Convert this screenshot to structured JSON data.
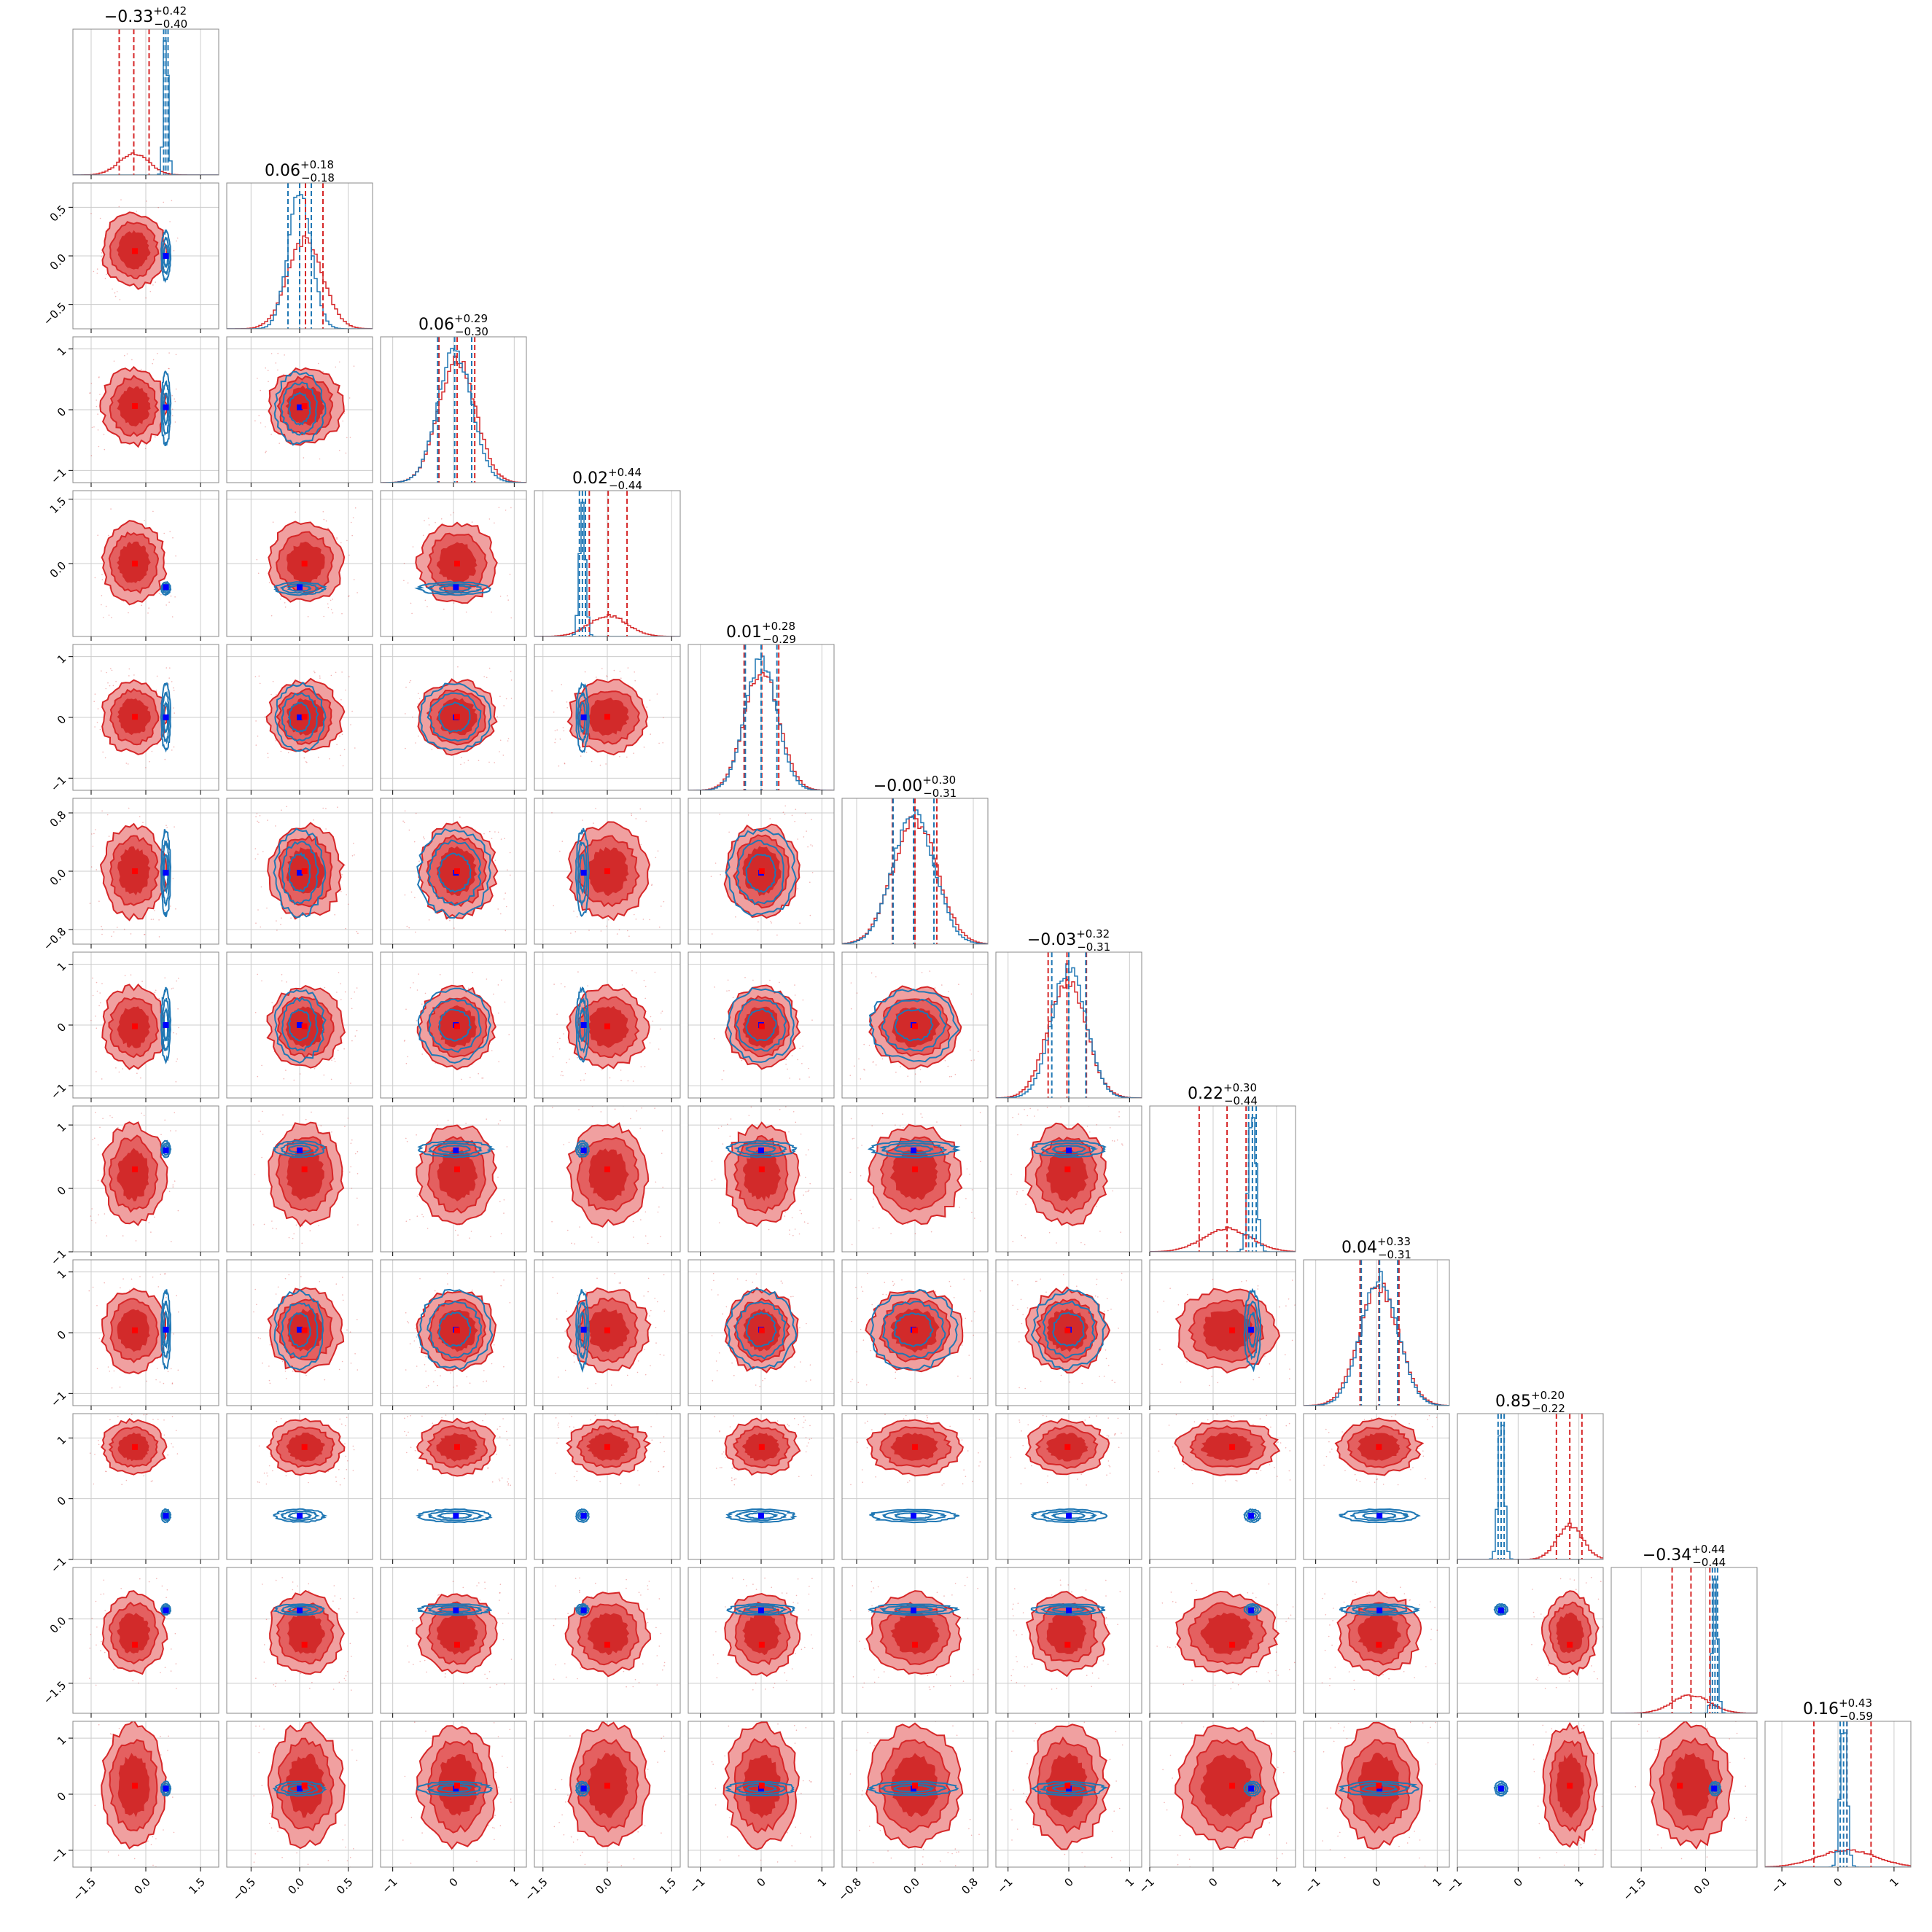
{
  "chart_data": {
    "type": "corner",
    "n_params": 12,
    "grid": true,
    "axes_label_rows": {
      "x_ticks": [
        [
          "-1.5",
          "0.0",
          "1.5"
        ],
        [
          "-0.5",
          "0.0",
          "0.5"
        ],
        [
          "-1",
          "0",
          "1"
        ],
        [
          "-1.5",
          "0.0",
          "1.5"
        ],
        [
          "-1",
          "0",
          "1"
        ],
        [
          "-0.8",
          "0.0",
          "0.8"
        ],
        [
          "-1",
          "0",
          "1"
        ],
        [
          "-1",
          "0",
          "1"
        ],
        [
          "-1",
          "0",
          "1"
        ],
        [
          "-1",
          "0",
          "1"
        ],
        [
          "-1.5",
          "0.0"
        ],
        [
          "-1",
          "0",
          "1"
        ]
      ],
      "y_ticks": [
        [],
        [
          "0.5",
          "0.0",
          "-0.5"
        ],
        [
          "1",
          "0",
          "-1"
        ],
        [
          "1.5",
          "0.0"
        ],
        [
          "1",
          "0",
          "-1"
        ],
        [
          "0.8",
          "0.0",
          "-0.8"
        ],
        [
          "1",
          "0",
          "-1"
        ],
        [
          "1",
          "0",
          "-1"
        ],
        [
          "1",
          "0",
          "-1"
        ],
        [
          "1",
          "0",
          "-1"
        ],
        [
          "0.0",
          "-1.5"
        ],
        [
          "1",
          "0",
          "-1"
        ]
      ]
    },
    "titles": [
      {
        "median": "-0.33",
        "plus": "+0.42",
        "minus": "-0.40"
      },
      {
        "median": "0.06",
        "plus": "+0.18",
        "minus": "-0.18"
      },
      {
        "median": "0.06",
        "plus": "+0.29",
        "minus": "-0.30"
      },
      {
        "median": "0.02",
        "plus": "+0.44",
        "minus": "-0.44"
      },
      {
        "median": "0.01",
        "plus": "+0.28",
        "minus": "-0.29"
      },
      {
        "median": "-0.00",
        "plus": "+0.30",
        "minus": "-0.31"
      },
      {
        "median": "-0.03",
        "plus": "+0.32",
        "minus": "-0.31"
      },
      {
        "median": "0.22",
        "plus": "+0.30",
        "minus": "-0.44"
      },
      {
        "median": "0.04",
        "plus": "+0.33",
        "minus": "-0.31"
      },
      {
        "median": "0.85",
        "plus": "+0.20",
        "minus": "-0.22"
      },
      {
        "median": "-0.34",
        "plus": "+0.44",
        "minus": "-0.44"
      },
      {
        "median": "0.16",
        "plus": "+0.43",
        "minus": "-0.59"
      }
    ],
    "ranges": [
      [
        -2.0,
        2.0
      ],
      [
        -0.75,
        0.75
      ],
      [
        -1.2,
        1.2
      ],
      [
        -1.7,
        1.7
      ],
      [
        -1.2,
        1.2
      ],
      [
        -1.0,
        1.0
      ],
      [
        -1.2,
        1.2
      ],
      [
        -1.0,
        1.3
      ],
      [
        -1.2,
        1.2
      ],
      [
        -1.0,
        1.4
      ],
      [
        -2.2,
        1.2
      ],
      [
        -1.3,
        1.3
      ]
    ],
    "red_posterior": {
      "median": [
        -0.33,
        0.06,
        0.06,
        0.02,
        0.01,
        -0.0,
        -0.03,
        0.22,
        0.04,
        0.85,
        -0.34,
        0.16
      ],
      "sigma": [
        0.41,
        0.18,
        0.3,
        0.44,
        0.28,
        0.3,
        0.31,
        0.37,
        0.32,
        0.21,
        0.44,
        0.51
      ],
      "q16": [
        -0.73,
        -0.12,
        -0.24,
        -0.42,
        -0.28,
        -0.31,
        -0.34,
        -0.22,
        -0.27,
        0.63,
        -0.78,
        -0.43
      ],
      "q84": [
        0.09,
        0.24,
        0.35,
        0.46,
        0.29,
        0.3,
        0.29,
        0.52,
        0.37,
        1.05,
        0.1,
        0.59
      ]
    },
    "blue_posterior": {
      "median": [
        0.55,
        0.0,
        0.02,
        -0.58,
        0.0,
        -0.02,
        0.0,
        0.62,
        0.05,
        -0.28,
        0.22,
        0.1
      ],
      "sigma": [
        0.06,
        0.12,
        0.28,
        0.07,
        0.26,
        0.28,
        0.28,
        0.06,
        0.3,
        0.05,
        0.06,
        0.06
      ]
    },
    "truths": {
      "blue": [
        0.55,
        0.0,
        0.04,
        -0.55,
        0.0,
        -0.02,
        0.0,
        0.6,
        0.05,
        -0.28,
        0.2,
        0.1
      ],
      "red": [
        -0.3,
        0.05,
        0.06,
        0.0,
        0.01,
        0.0,
        -0.02,
        0.3,
        0.04,
        0.85,
        -0.6,
        0.15
      ]
    },
    "colors": {
      "red": "#d62728",
      "red_fill_light": "#f0a0a0",
      "red_fill_mid": "#e46060",
      "red_fill_dark": "#d22a2a",
      "blue": "#1f77b4",
      "truth_blue": "#0000ff",
      "truth_red": "#ff0000",
      "grid": "#cccccc",
      "axis": "#000000"
    }
  }
}
